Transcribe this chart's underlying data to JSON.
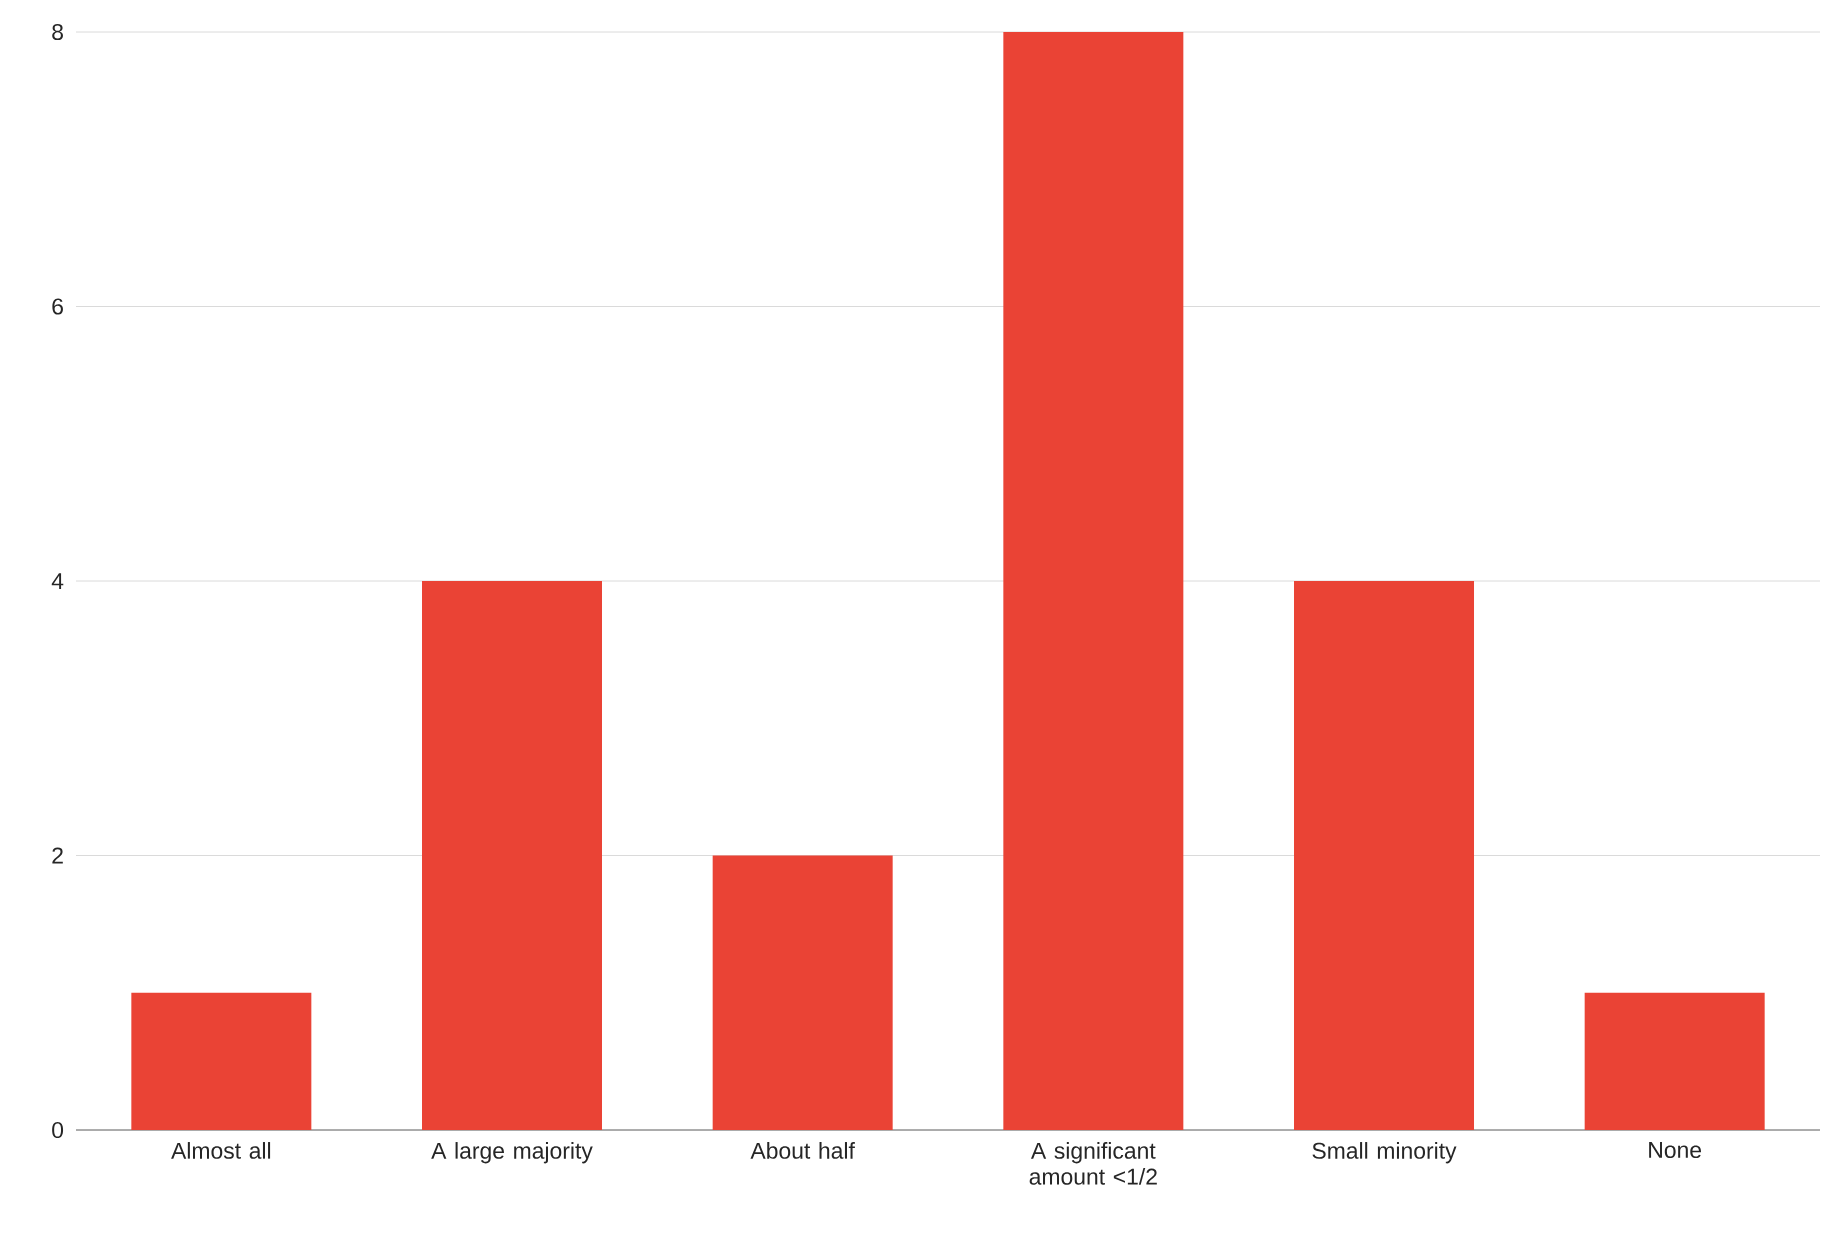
{
  "chart_data": {
    "type": "bar",
    "categories": [
      "Almost all",
      "A large majority",
      "About half",
      "A significant amount <1/2",
      "Small minority",
      "None"
    ],
    "values": [
      1,
      4,
      2,
      8,
      4,
      1
    ],
    "color": "#ea4335",
    "ylim": [
      0,
      8
    ],
    "yticks": [
      0,
      2,
      4,
      6,
      8
    ],
    "grid": "y"
  }
}
